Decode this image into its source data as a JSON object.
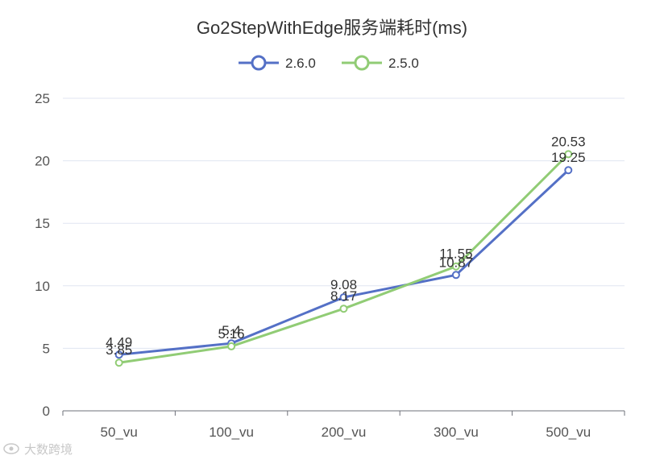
{
  "chart_data": {
    "type": "line",
    "title": "Go2StepWithEdge服务端耗时(ms)",
    "categories": [
      "50_vu",
      "100_vu",
      "200_vu",
      "300_vu",
      "500_vu"
    ],
    "series": [
      {
        "name": "2.6.0",
        "color": "#5470c6",
        "values": [
          4.49,
          5.4,
          9.08,
          10.87,
          19.25
        ]
      },
      {
        "name": "2.5.0",
        "color": "#91cc75",
        "values": [
          3.85,
          5.16,
          8.17,
          11.55,
          20.53
        ]
      }
    ],
    "ylim": [
      0,
      25
    ],
    "yticks": [
      0,
      5,
      10,
      15,
      20,
      25
    ],
    "grid": true,
    "legend_position": "top-center"
  },
  "watermark": {
    "text": "大数跨境",
    "icon": "eye-logo-icon"
  }
}
